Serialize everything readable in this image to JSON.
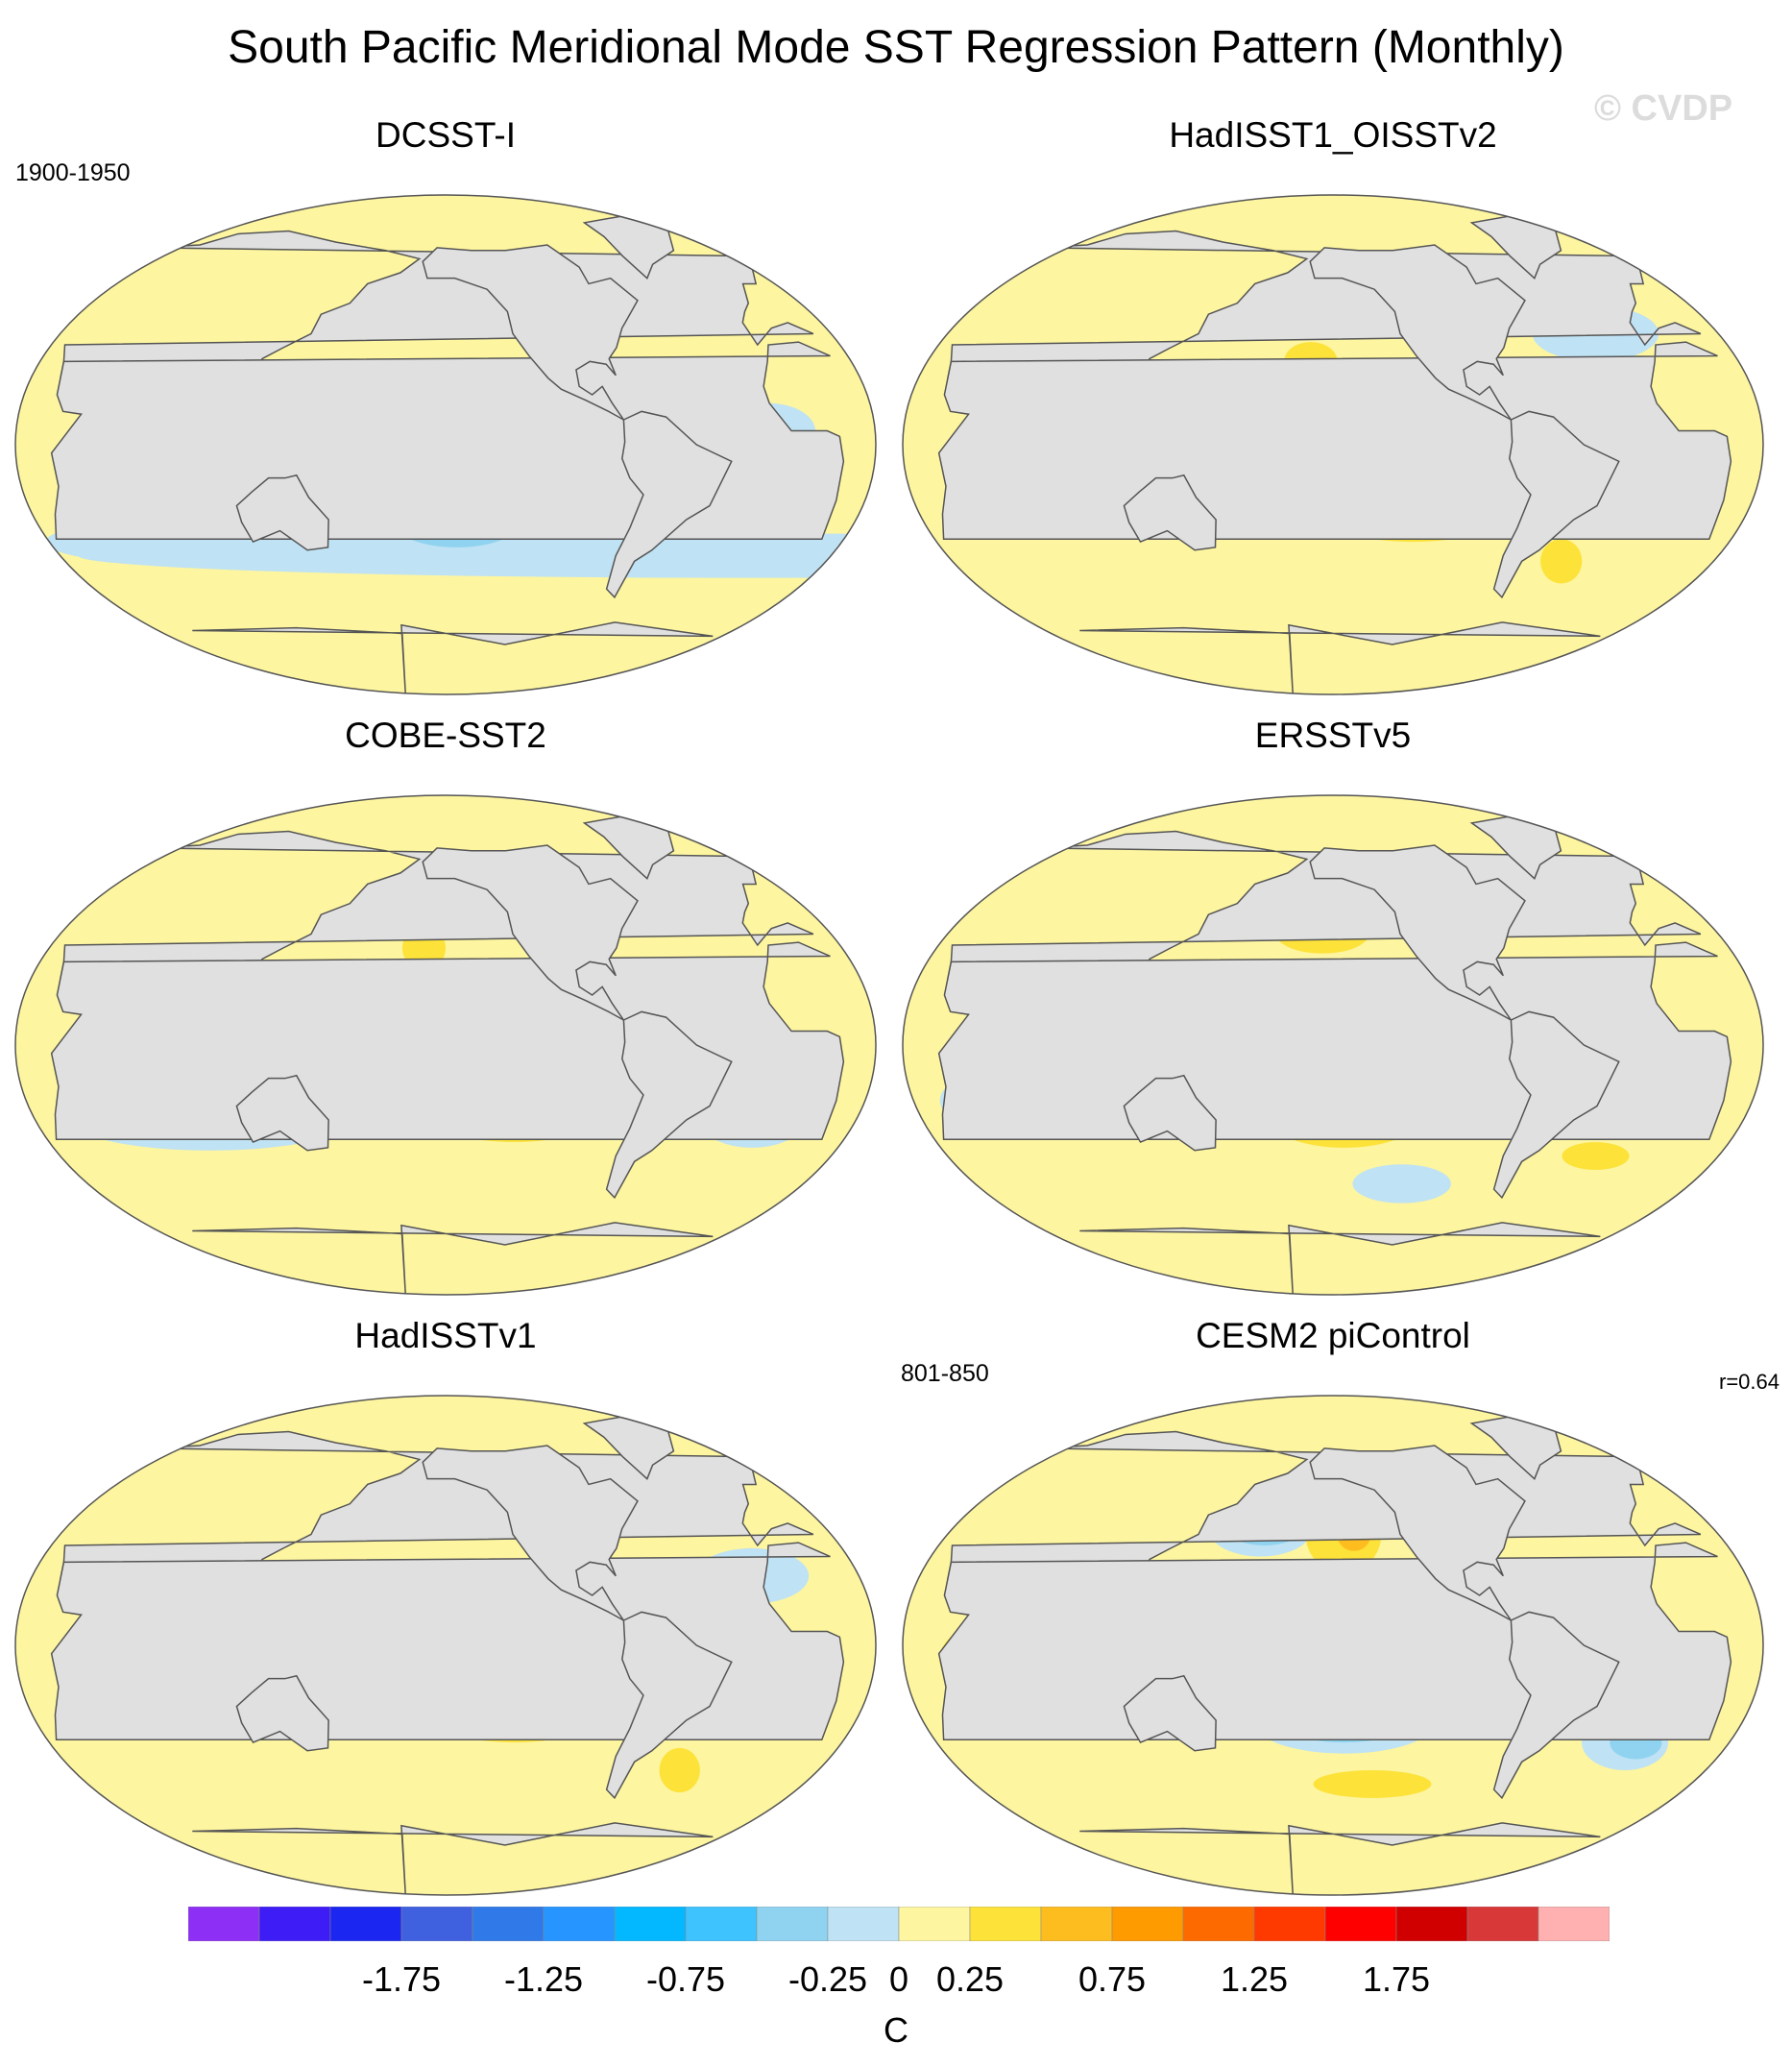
{
  "title": "South Pacific Meridional Mode SST Regression Pattern (Monthly)",
  "watermark": "© CVDP",
  "colors": {
    "land": "#e0e0e0",
    "coastline": "#555555",
    "ocean_neutral_positive": "#fdf5a0",
    "ocean_neutral_negative": "#bfe2f4"
  },
  "panels": [
    {
      "title": "DCSST-I",
      "period_label": "1900-1950",
      "r_label": "",
      "features": [
        {
          "level": -0.25,
          "lon": -150,
          "lat": 48,
          "rx": 30,
          "ry": 10
        },
        {
          "level": -0.25,
          "lon": -115,
          "lat": 8,
          "rx": 40,
          "ry": 6
        },
        {
          "level": -0.25,
          "lon": -20,
          "lat": 5,
          "rx": 20,
          "ry": 10
        },
        {
          "level": -0.25,
          "lon": 80,
          "lat": -35,
          "rx": 60,
          "ry": 8
        },
        {
          "level": -0.25,
          "lon": -10,
          "lat": -40,
          "rx": 40,
          "ry": 8
        },
        {
          "level": -0.25,
          "lon": -150,
          "lat": -28,
          "rx": 38,
          "ry": 14
        },
        {
          "level": -0.5,
          "lon": -150,
          "lat": -28,
          "rx": 28,
          "ry": 9
        },
        {
          "level": -0.75,
          "lon": -148,
          "lat": -28,
          "rx": 20,
          "ry": 6
        },
        {
          "level": 0.25,
          "lon": -160,
          "lat": 10,
          "rx": 4,
          "ry": 2
        }
      ]
    },
    {
      "title": "HadISST1_OISSTv2",
      "period_label": "",
      "r_label": "",
      "features": [
        {
          "level": -0.25,
          "lon": -140,
          "lat": 18,
          "rx": 40,
          "ry": 12
        },
        {
          "level": -0.5,
          "lon": -145,
          "lat": 15,
          "rx": 24,
          "ry": 5
        },
        {
          "level": -0.25,
          "lon": 80,
          "lat": -20,
          "rx": 25,
          "ry": 10
        },
        {
          "level": -0.25,
          "lon": -30,
          "lat": 40,
          "rx": 30,
          "ry": 10
        },
        {
          "level": 0.25,
          "lon": -120,
          "lat": -22,
          "rx": 45,
          "ry": 13
        },
        {
          "level": 0.5,
          "lon": -110,
          "lat": -22,
          "rx": 12,
          "ry": 4
        },
        {
          "level": 0.25,
          "lon": -165,
          "lat": 30,
          "rx": 12,
          "ry": 7
        },
        {
          "level": 0.25,
          "lon": -45,
          "lat": -42,
          "rx": 10,
          "ry": 8
        }
      ]
    },
    {
      "title": "COBE-SST2",
      "period_label": "",
      "r_label": "",
      "features": [
        {
          "level": -0.25,
          "lon": -145,
          "lat": 15,
          "rx": 42,
          "ry": 11
        },
        {
          "level": -0.5,
          "lon": -148,
          "lat": 14,
          "rx": 22,
          "ry": 4
        },
        {
          "level": -0.25,
          "lon": 100,
          "lat": -28,
          "rx": 60,
          "ry": 10
        },
        {
          "level": -0.25,
          "lon": -20,
          "lat": -25,
          "rx": 25,
          "ry": 12
        },
        {
          "level": 0.25,
          "lon": -125,
          "lat": -22,
          "rx": 42,
          "ry": 13
        },
        {
          "level": 0.25,
          "lon": -165,
          "lat": 35,
          "rx": 10,
          "ry": 8
        }
      ]
    },
    {
      "title": "ERSSTv5",
      "period_label": "",
      "r_label": "",
      "features": [
        {
          "level": -0.25,
          "lon": -140,
          "lat": 12,
          "rx": 45,
          "ry": 12
        },
        {
          "level": -0.5,
          "lon": -150,
          "lat": 12,
          "rx": 18,
          "ry": 4
        },
        {
          "level": -0.25,
          "lon": 80,
          "lat": -20,
          "rx": 45,
          "ry": 14
        },
        {
          "level": -0.25,
          "lon": -120,
          "lat": -50,
          "rx": 25,
          "ry": 7
        },
        {
          "level": 0.25,
          "lon": -160,
          "lat": 40,
          "rx": 22,
          "ry": 7
        },
        {
          "level": 0.25,
          "lon": -150,
          "lat": -25,
          "rx": 35,
          "ry": 12
        },
        {
          "level": 0.5,
          "lon": -150,
          "lat": -25,
          "rx": 22,
          "ry": 7
        },
        {
          "level": 0.75,
          "lon": -148,
          "lat": -25,
          "rx": 12,
          "ry": 4
        },
        {
          "level": 0.25,
          "lon": -30,
          "lat": -40,
          "rx": 16,
          "ry": 5
        }
      ]
    },
    {
      "title": "HadISSTv1",
      "period_label": "",
      "r_label": "",
      "features": [
        {
          "level": -0.25,
          "lon": -140,
          "lat": 15,
          "rx": 38,
          "ry": 11
        },
        {
          "level": -0.5,
          "lon": -145,
          "lat": 14,
          "rx": 22,
          "ry": 4
        },
        {
          "level": -0.25,
          "lon": 80,
          "lat": -22,
          "rx": 30,
          "ry": 12
        },
        {
          "level": -0.25,
          "lon": -20,
          "lat": 25,
          "rx": 25,
          "ry": 10
        },
        {
          "level": 0.25,
          "lon": -125,
          "lat": -22,
          "rx": 42,
          "ry": 13
        },
        {
          "level": 0.5,
          "lon": -120,
          "lat": -22,
          "rx": 15,
          "ry": 3
        },
        {
          "level": 0.25,
          "lon": -40,
          "lat": -45,
          "rx": 10,
          "ry": 8
        }
      ]
    },
    {
      "title": "CESM2 piControl",
      "period_label": "801-850",
      "r_label": "r=0.64",
      "features": [
        {
          "level": -0.25,
          "lon": 170,
          "lat": 42,
          "rx": 25,
          "ry": 10
        },
        {
          "level": -0.5,
          "lon": 172,
          "lat": 42,
          "rx": 18,
          "ry": 6
        },
        {
          "level": -0.75,
          "lon": 175,
          "lat": 42,
          "rx": 6,
          "ry": 2
        },
        {
          "level": 0.25,
          "lon": -150,
          "lat": 40,
          "rx": 18,
          "ry": 14
        },
        {
          "level": 0.5,
          "lon": -145,
          "lat": 40,
          "rx": 8,
          "ry": 6
        },
        {
          "level": -0.25,
          "lon": -130,
          "lat": 10,
          "rx": 48,
          "ry": 3
        },
        {
          "level": 0.25,
          "lon": -120,
          "lat": -5,
          "rx": 55,
          "ry": 8
        },
        {
          "level": 0.5,
          "lon": -110,
          "lat": -5,
          "rx": 35,
          "ry": 5
        },
        {
          "level": -0.25,
          "lon": -150,
          "lat": -28,
          "rx": 40,
          "ry": 11
        },
        {
          "level": -0.5,
          "lon": -150,
          "lat": -28,
          "rx": 28,
          "ry": 7
        },
        {
          "level": -0.75,
          "lon": -148,
          "lat": -28,
          "rx": 16,
          "ry": 4
        },
        {
          "level": 0.25,
          "lon": 70,
          "lat": -5,
          "rx": 30,
          "ry": 15
        },
        {
          "level": 0.5,
          "lon": 70,
          "lat": -2,
          "rx": 20,
          "ry": 5
        },
        {
          "level": -0.25,
          "lon": -20,
          "lat": -35,
          "rx": 20,
          "ry": 10
        },
        {
          "level": -0.5,
          "lon": -15,
          "lat": -35,
          "rx": 12,
          "ry": 6
        },
        {
          "level": 0.25,
          "lon": -135,
          "lat": -50,
          "rx": 30,
          "ry": 5
        }
      ]
    }
  ],
  "chart_data": {
    "type": "heatmap",
    "title": "South Pacific Meridional Mode SST Regression Pattern (Monthly)",
    "projection": "Robinson",
    "units": "C",
    "panels": [
      "DCSST-I",
      "HadISST1_OISSTv2",
      "COBE-SST2",
      "ERSSTv5",
      "HadISSTv1",
      "CESM2 piControl"
    ],
    "colorbar": {
      "levels": [
        -2.0,
        -1.75,
        -1.5,
        -1.25,
        -1.0,
        -0.75,
        -0.5,
        -0.25,
        0.0,
        0.25,
        0.5,
        0.75,
        1.0,
        1.25,
        1.5,
        1.75,
        2.0
      ],
      "tick_labels": [
        "-1.75",
        "-1.25",
        "-0.75",
        "-0.25",
        "0",
        "0.25",
        "0.75",
        "1.25",
        "1.75"
      ],
      "tick_values": [
        -1.75,
        -1.25,
        -0.75,
        -0.25,
        0,
        0.25,
        0.75,
        1.25,
        1.75
      ],
      "colors": [
        "#8d2ff4",
        "#3e1cf6",
        "#1b27f0",
        "#3f61e0",
        "#2f7ae8",
        "#2695ff",
        "#04b8ff",
        "#3ec3ff",
        "#8fd3f0",
        "#bfe2f4",
        "#fdf5a0",
        "#fde23a",
        "#fdbd1f",
        "#fd9b00",
        "#fd6b00",
        "#ff3a00",
        "#ff0000",
        "#d00000",
        "#d83838",
        "#ffb0b0"
      ]
    }
  }
}
